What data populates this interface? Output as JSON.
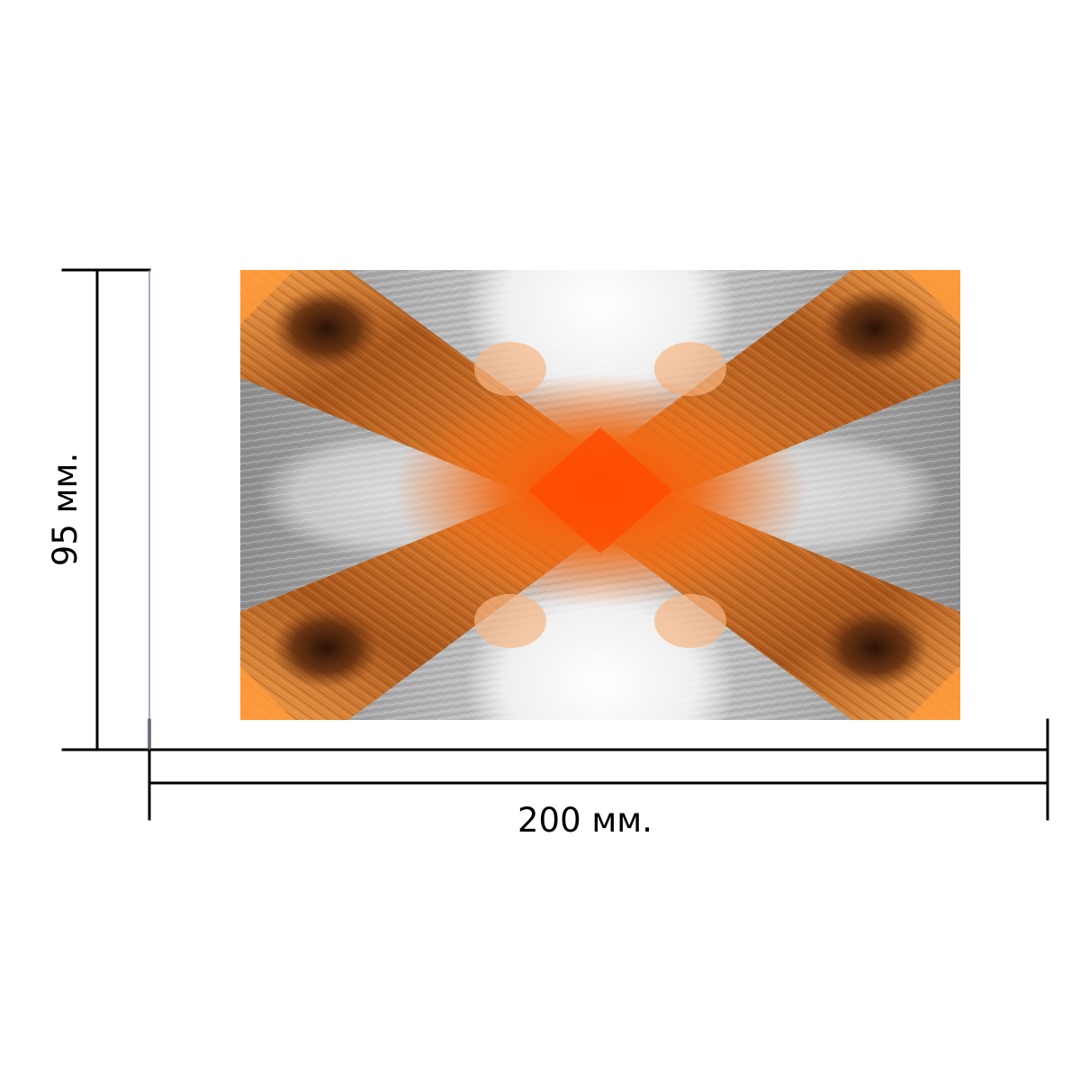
{
  "dimensions": {
    "width_label": "200 мм.",
    "height_label": "95 мм."
  },
  "artwork": {
    "colors": {
      "center": "#ff4a00",
      "orange": "#f07a1e",
      "rust": "#a3521a",
      "dark": "#3a1a0a",
      "gray": "#9a9a9a",
      "white": "#ffffff"
    }
  }
}
